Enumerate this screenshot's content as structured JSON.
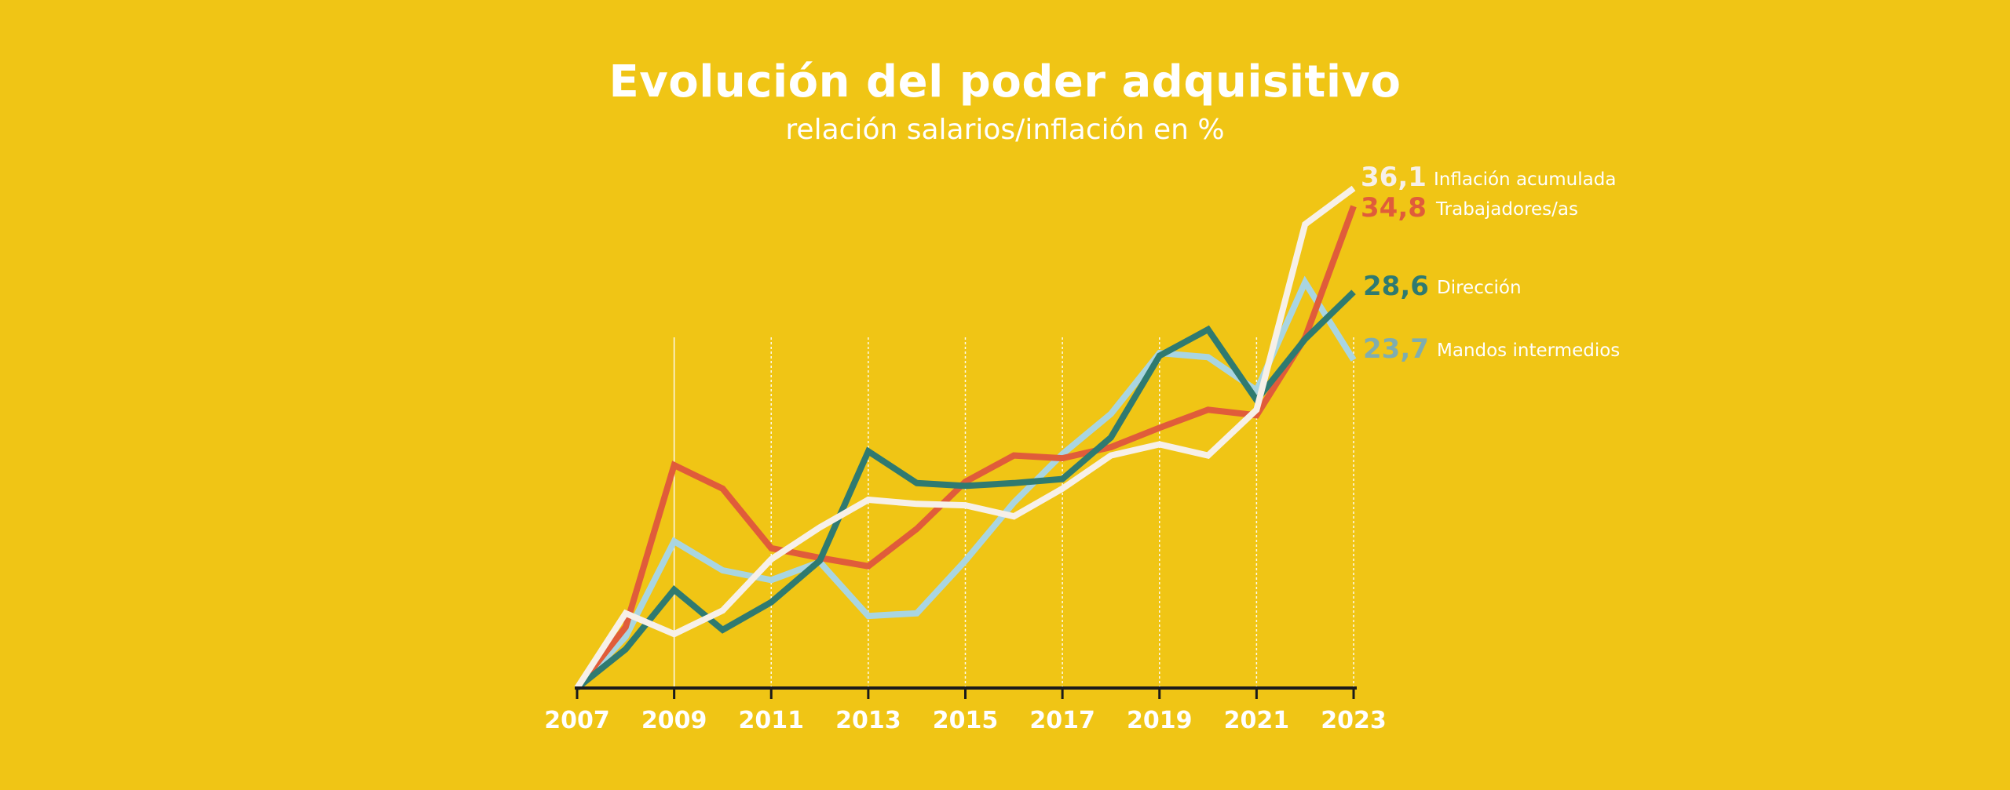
{
  "chart_data": {
    "type": "line",
    "title": "Evolución del poder adquisitivo",
    "subtitle": "relación salarios/inflación en %",
    "xlabel": "",
    "ylabel": "",
    "x": [
      2007,
      2008,
      2009,
      2010,
      2011,
      2012,
      2013,
      2014,
      2015,
      2016,
      2017,
      2018,
      2019,
      2020,
      2021,
      2022,
      2023
    ],
    "x_tick_labels": [
      "2007",
      "2009",
      "2011",
      "2013",
      "2015",
      "2017",
      "2019",
      "2021",
      "2023"
    ],
    "ylim": [
      0,
      36.1
    ],
    "grid": "vertical dotted lines at odd years",
    "legend": "right, end-of-line labels",
    "series": [
      {
        "name": "Inflación acumulada",
        "end_label": "36,1",
        "color": "#F7F0E8",
        "value_color": "#F7F0E8",
        "values": [
          0,
          5.4,
          3.9,
          5.6,
          9.3,
          11.6,
          13.6,
          13.3,
          13.2,
          12.4,
          14.4,
          16.8,
          17.6,
          16.8,
          20.1,
          33.5,
          36.1
        ]
      },
      {
        "name": "Trabajadores/as",
        "end_label": "34,8",
        "color": "#E05C3A",
        "value_color": "#E05C3A",
        "values": [
          0,
          4.4,
          16.1,
          14.4,
          10.1,
          9.4,
          8.8,
          11.5,
          14.9,
          16.8,
          16.6,
          17.4,
          18.8,
          20.1,
          19.7,
          25.3,
          34.8
        ]
      },
      {
        "name": "Dirección",
        "end_label": "28,6",
        "color": "#2F7A70",
        "value_color": "#2F7A70",
        "values": [
          0,
          2.8,
          7.1,
          4.2,
          6.2,
          9.2,
          17.1,
          14.8,
          14.6,
          14.8,
          15.1,
          18.1,
          24.0,
          25.9,
          20.8,
          25.2,
          28.6
        ]
      },
      {
        "name": "Mandos intermedios",
        "end_label": "23,7",
        "color": "#A9D5E1",
        "value_color": "#7FADB0",
        "values": [
          0,
          3.7,
          10.6,
          8.5,
          7.8,
          9.1,
          5.2,
          5.4,
          9.2,
          13.4,
          16.9,
          19.8,
          24.2,
          23.9,
          21.5,
          29.3,
          23.7
        ]
      }
    ],
    "colors": {
      "background": "#F0C515",
      "axis": "#1a1a1a",
      "text": "#FFFFFF"
    }
  }
}
